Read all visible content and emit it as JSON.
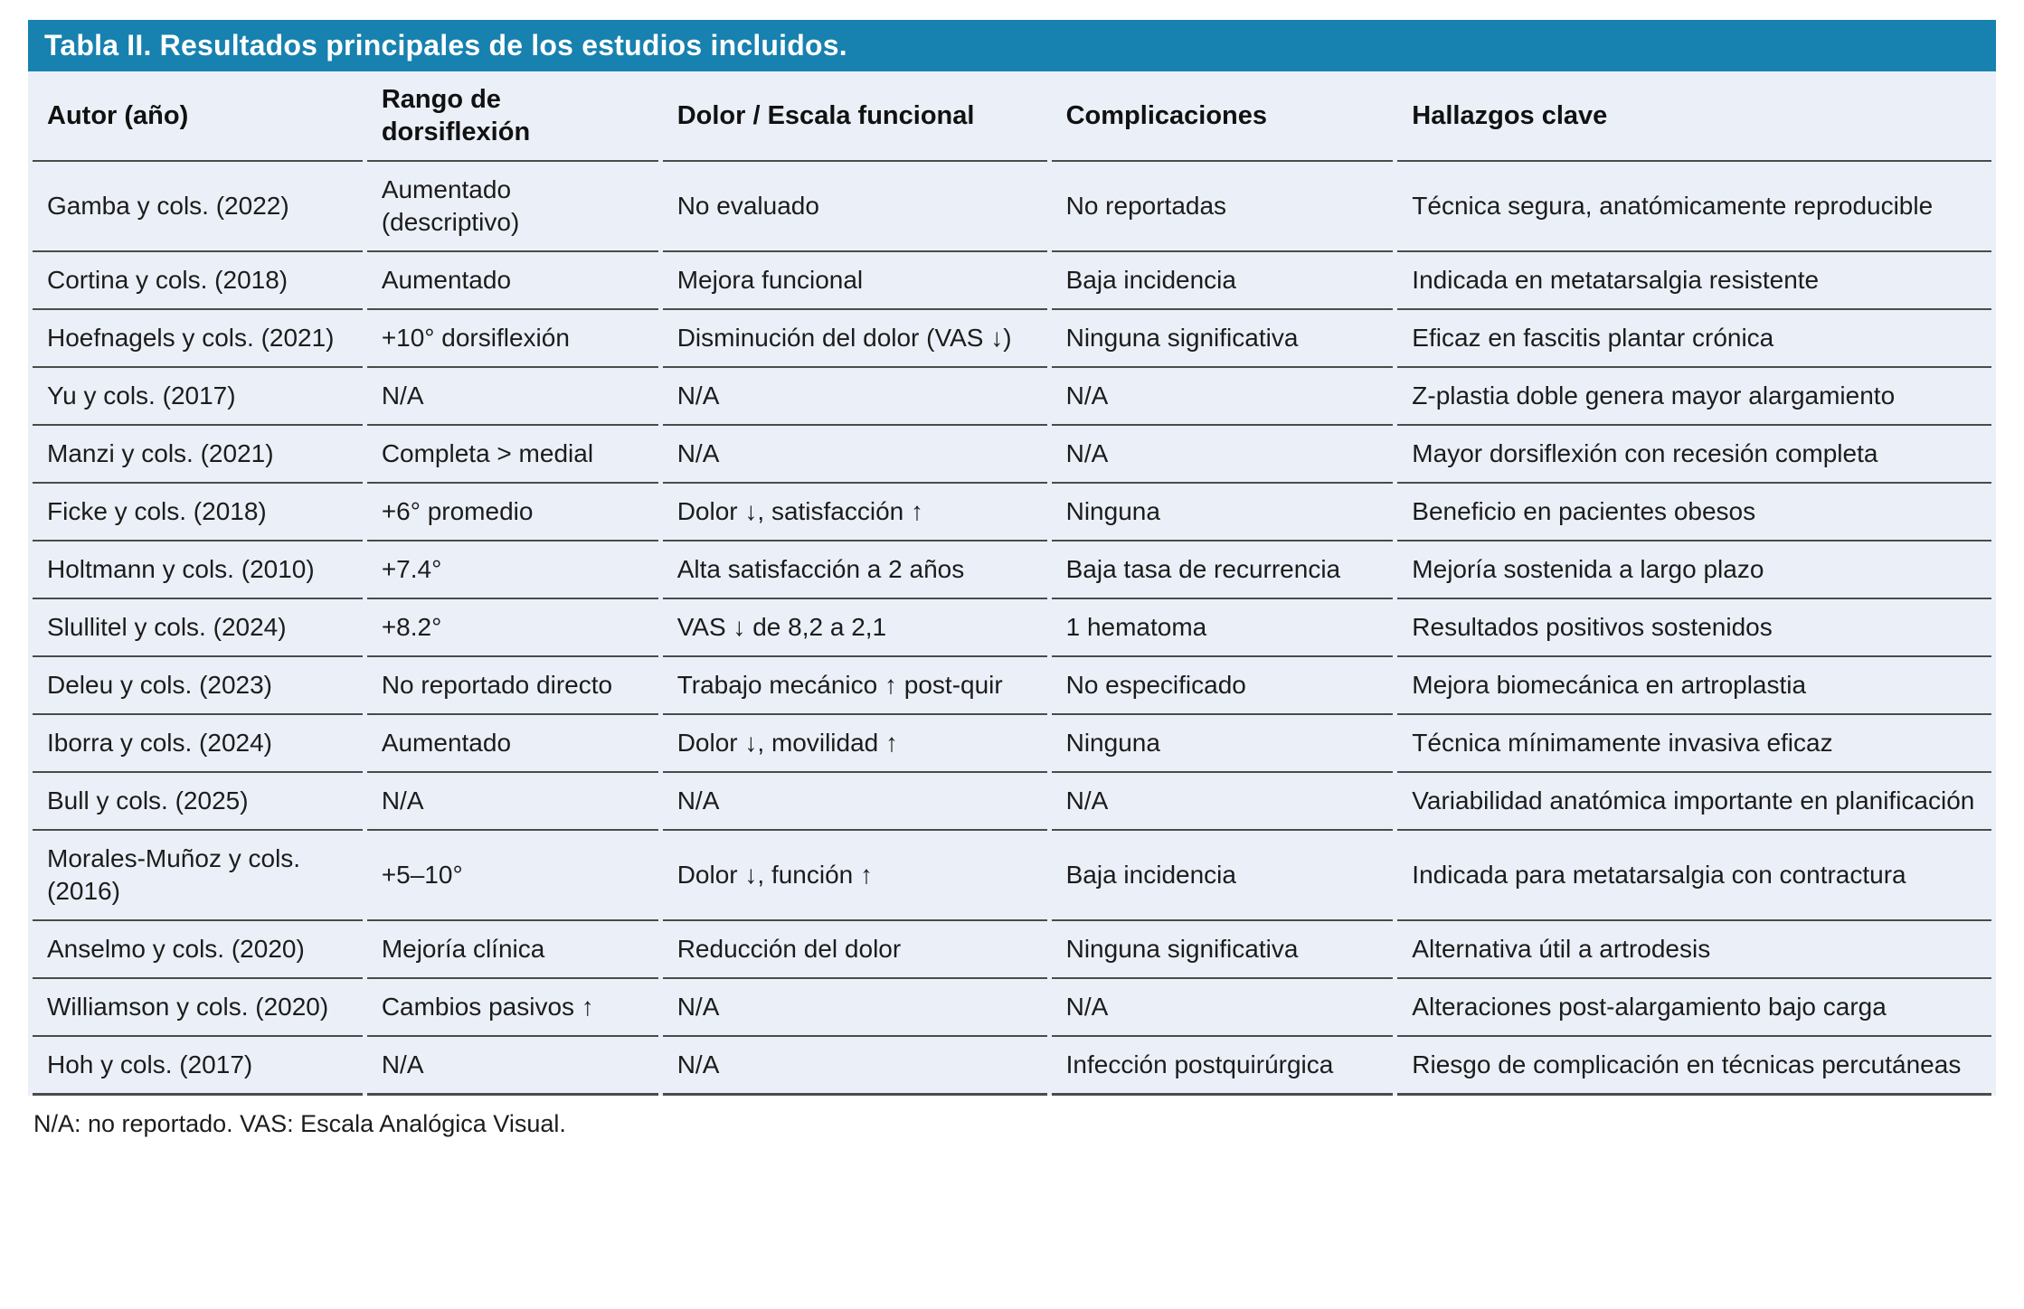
{
  "table": {
    "title": "Tabla II. Resultados principales de los estudios incluidos.",
    "columns": [
      "Autor (año)",
      "Rango de dorsiflexión",
      "Dolor / Escala funcional",
      "Complicaciones",
      "Hallazgos clave"
    ],
    "rows": [
      [
        "Gamba y cols. (2022)",
        "Aumentado (descriptivo)",
        "No evaluado",
        "No reportadas",
        "Técnica segura, anatómicamente reproducible"
      ],
      [
        "Cortina y cols. (2018)",
        "Aumentado",
        "Mejora funcional",
        "Baja incidencia",
        "Indicada en metatarsalgia resistente"
      ],
      [
        "Hoefnagels y cols. (2021)",
        "+10° dorsiflexión",
        "Disminución del dolor (VAS ↓)",
        "Ninguna significativa",
        "Eficaz en fascitis plantar crónica"
      ],
      [
        "Yu y cols. (2017)",
        "N/A",
        "N/A",
        "N/A",
        "Z-plastia doble genera mayor alargamiento"
      ],
      [
        "Manzi y cols. (2021)",
        "Completa > medial",
        "N/A",
        "N/A",
        "Mayor dorsiflexión con recesión completa"
      ],
      [
        "Ficke y cols. (2018)",
        "+6° promedio",
        "Dolor ↓, satisfacción ↑",
        "Ninguna",
        "Beneficio en pacientes obesos"
      ],
      [
        "Holtmann y cols. (2010)",
        "+7.4°",
        "Alta satisfacción a 2 años",
        "Baja tasa de recurrencia",
        "Mejoría sostenida a largo plazo"
      ],
      [
        "Slullitel y cols. (2024)",
        "+8.2°",
        "VAS ↓ de 8,2 a 2,1",
        "1 hematoma",
        "Resultados positivos sostenidos"
      ],
      [
        "Deleu y cols. (2023)",
        "No reportado directo",
        "Trabajo mecánico ↑ post-quir",
        "No especificado",
        "Mejora biomecánica en artroplastia"
      ],
      [
        "Iborra y cols. (2024)",
        "Aumentado",
        "Dolor ↓, movilidad ↑",
        "Ninguna",
        "Técnica mínimamente invasiva eficaz"
      ],
      [
        "Bull y cols. (2025)",
        "N/A",
        "N/A",
        "N/A",
        "Variabilidad anatómica importante en planificación"
      ],
      [
        "Morales-Muñoz y cols. (2016)",
        "+5–10°",
        "Dolor ↓, función ↑",
        "Baja incidencia",
        "Indicada para metatarsalgia con contractura"
      ],
      [
        "Anselmo y cols. (2020)",
        "Mejoría clínica",
        "Reducción del dolor",
        "Ninguna significativa",
        "Alternativa útil a artrodesis"
      ],
      [
        "Williamson y cols. (2020)",
        "Cambios pasivos ↑",
        "N/A",
        "N/A",
        "Alteraciones post-alargamiento bajo carga"
      ],
      [
        "Hoh y cols. (2017)",
        "N/A",
        "N/A",
        "Infección postquirúrgica",
        "Riesgo de complicación en técnicas percutáneas"
      ]
    ],
    "footnote": "N/A: no reportado. VAS: Escala Analógica Visual.",
    "colors": {
      "title_bar_bg": "#1781af",
      "title_text": "#ffffff",
      "body_bg": "#ebf0f8",
      "divider": "#4b4b4b",
      "text": "#1c1c1c"
    }
  }
}
